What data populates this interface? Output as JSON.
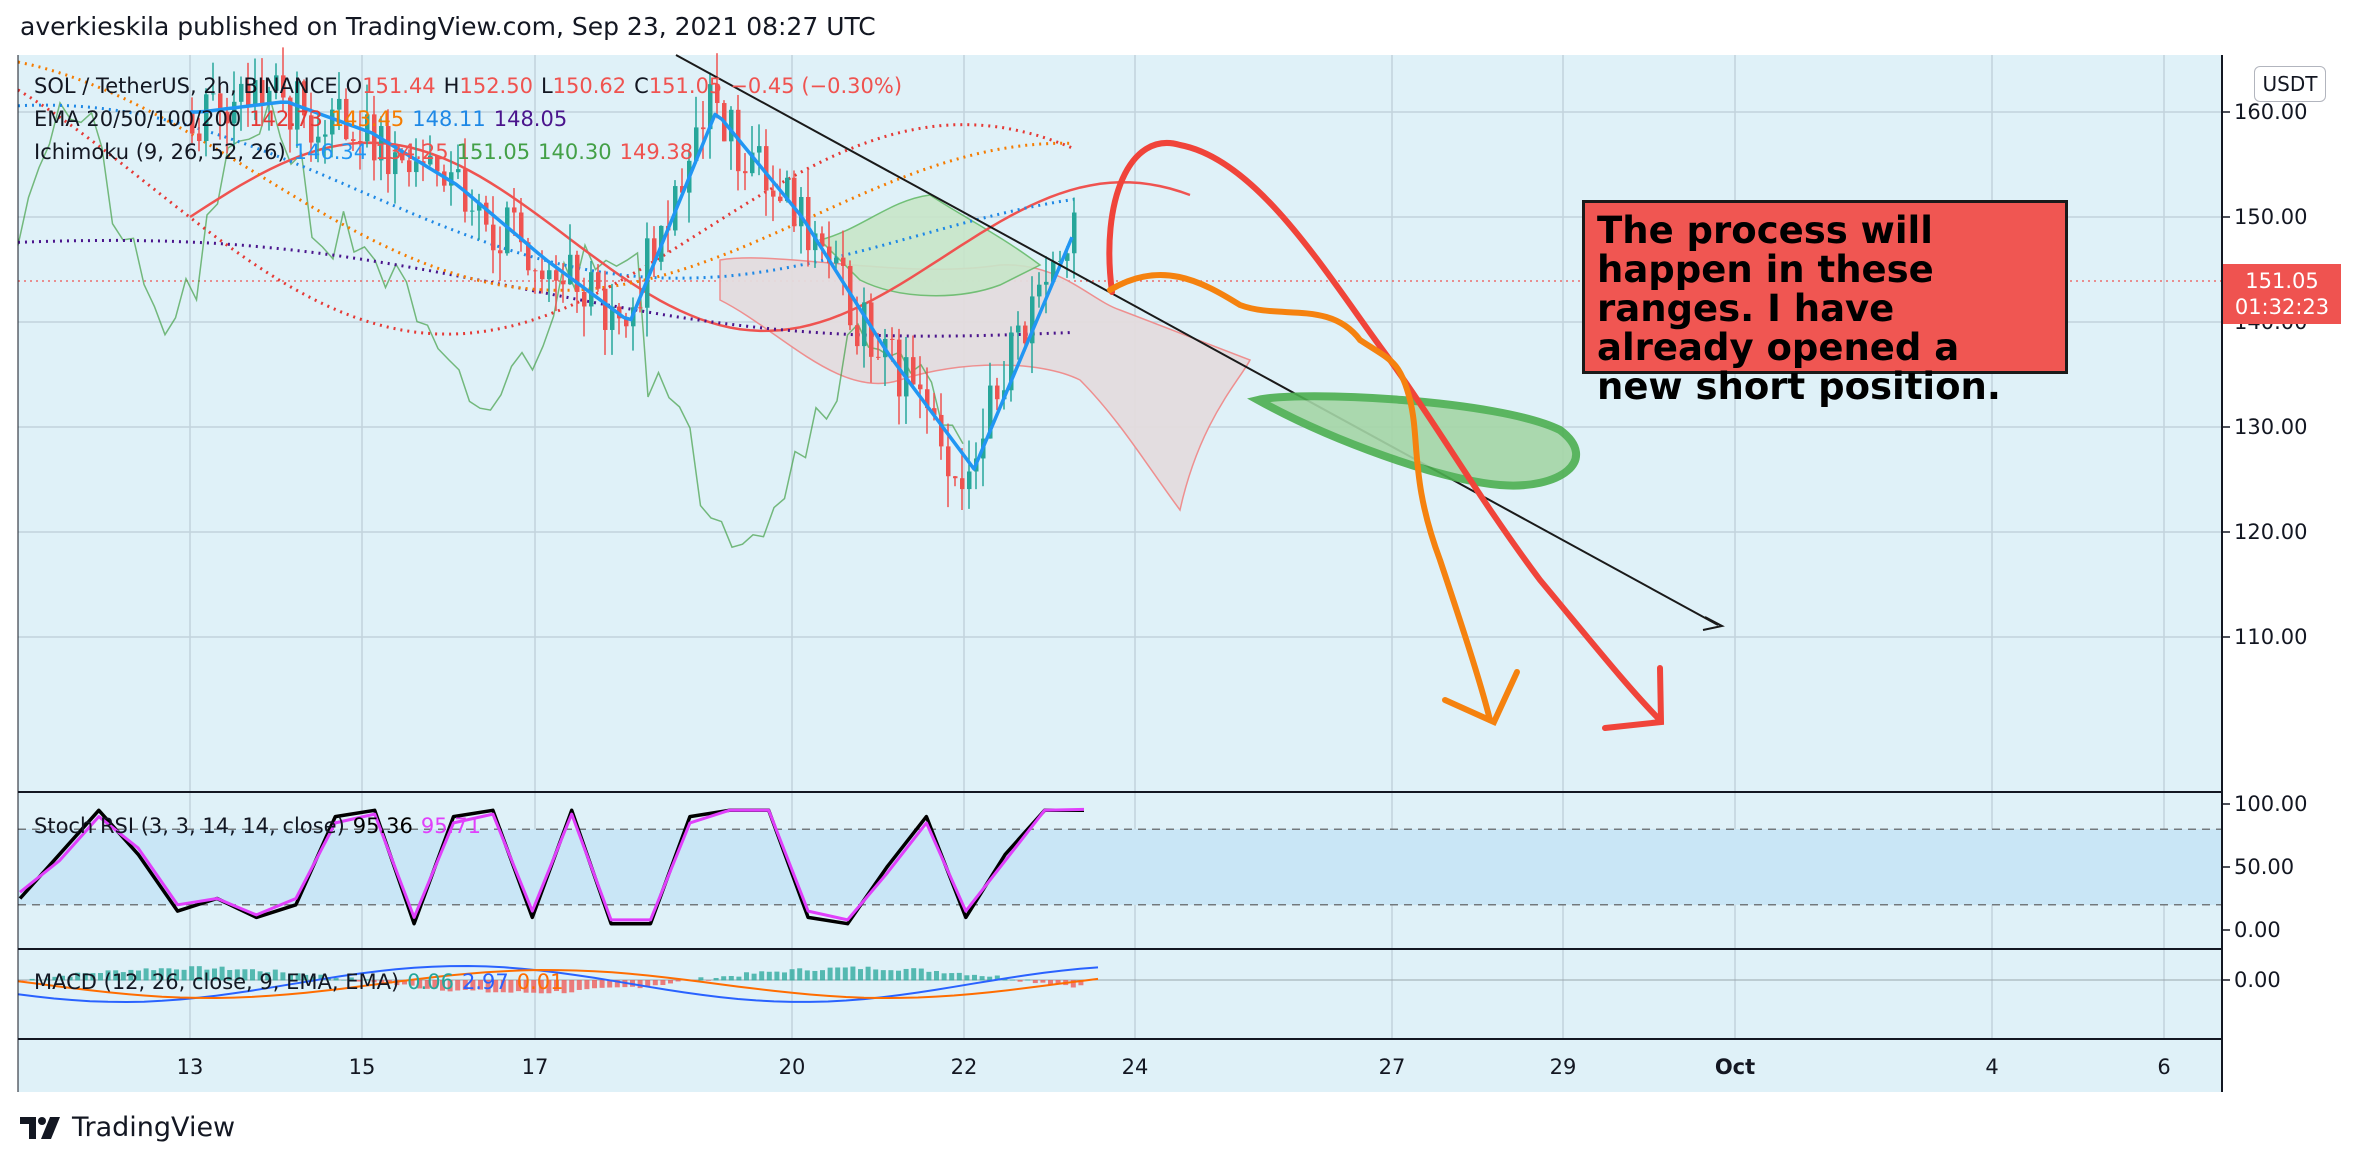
{
  "header": {
    "publisher_text": "averkieskila published on TradingView.com, Sep 23, 2021 08:27 UTC"
  },
  "legend": {
    "symbol": "SOL / TetherUS, 2h, BINANCE",
    "open_label": "O",
    "open": "151.44",
    "high_label": "H",
    "high": "152.50",
    "low_label": "L",
    "low": "150.62",
    "close_label": "C",
    "close": "151.05",
    "change": "−0.45 (−0.30%)",
    "ema_label": "EMA 20/50/100/200",
    "ema_values": [
      "142.73",
      "143.45",
      "148.11",
      "148.05"
    ],
    "ichimoku_label": "Ichimoku (9, 26, 52, 26)",
    "ichimoku_values": [
      "146.34",
      "134.25",
      "151.05",
      "140.30",
      "149.38"
    ],
    "stoch_label": "Stoch RSI (3, 3, 14, 14, close)",
    "stoch_values": [
      "95.36",
      "95.71"
    ],
    "macd_label": "MACD (12, 26, close, 9, EMA, EMA)",
    "macd_values": [
      "0.06",
      "2.97",
      "0.01"
    ]
  },
  "price_axis": {
    "currency": "USDT",
    "last_price": "151.05",
    "countdown": "01:32:23"
  },
  "annotation": {
    "text": "The process will happen in these ranges. I have already opened a new short position."
  },
  "colors": {
    "background": "#dff1f8",
    "up_candle": "#26a69a",
    "down_candle": "#ef5350",
    "ema20": "#e53935",
    "ema50": "#f57c00",
    "ema100": "#1e88e5",
    "ema200": "#4a148c",
    "conversion": "#2196f3",
    "base": "#ef5350",
    "lagging": "#43a047",
    "stoch_k": "#000000",
    "stoch_d": "#e040fb",
    "drawing_red": "#f0443a",
    "drawing_orange": "#f5820f",
    "drawing_green": "#4caf50"
  },
  "footer": {
    "brand": "TradingView"
  },
  "chart_data": [
    {
      "type": "candlestick",
      "title": "SOL / TetherUS, 2h, BINANCE",
      "x_ticks": [
        "13",
        "15",
        "17",
        "20",
        "22",
        "24",
        "27",
        "29",
        "Oct",
        "4",
        "6"
      ],
      "y_ticks": [
        "110.00",
        "120.00",
        "130.00",
        "140.00",
        "150.00",
        "160.00"
      ],
      "ylim": [
        100,
        170
      ],
      "grid": true,
      "last_price": 151.05,
      "ohlc_last": {
        "open": 151.44,
        "high": 152.5,
        "low": 150.62,
        "close": 151.05
      },
      "close_path": [
        {
          "x": "Sep 11",
          "close": 164
        },
        {
          "x": "Sep 12",
          "close": 160
        },
        {
          "x": "Sep 13",
          "close": 160
        },
        {
          "x": "Sep 14",
          "close": 161
        },
        {
          "x": "Sep 15",
          "close": 158
        },
        {
          "x": "Sep 16",
          "close": 153
        },
        {
          "x": "Sep 17",
          "close": 146
        },
        {
          "x": "Sep 18",
          "close": 140
        },
        {
          "x": "Sep 19",
          "close": 160
        },
        {
          "x": "Sep 20",
          "close": 150
        },
        {
          "x": "Sep 21",
          "close": 137
        },
        {
          "x": "Sep 22",
          "close": 126
        },
        {
          "x": "Sep 23",
          "close": 151
        }
      ],
      "ema_values_last": [
        142.73,
        143.45,
        148.11,
        148.05
      ],
      "ichimoku_values_last": [
        146.34,
        134.25,
        151.05,
        140.3,
        149.38
      ],
      "annotations": [
        "The process will happen in these ranges. I have already opened a new short position."
      ]
    },
    {
      "type": "line",
      "title": "Stoch RSI (3, 3, 14, 14, close)",
      "y_ticks": [
        "0.00",
        "50.00",
        "100.00"
      ],
      "ylim": [
        0,
        100
      ],
      "band": [
        20,
        80
      ],
      "series": [
        {
          "name": "K",
          "values": [
            25,
            60,
            95,
            60,
            15,
            25,
            10,
            20,
            90,
            95,
            5,
            90,
            95,
            10,
            95,
            5,
            5,
            90,
            95,
            95,
            10,
            5,
            50,
            90,
            10,
            60,
            95,
            95
          ]
        },
        {
          "name": "D",
          "values": [
            30,
            55,
            90,
            65,
            20,
            25,
            12,
            25,
            85,
            92,
            10,
            85,
            92,
            15,
            92,
            8,
            8,
            85,
            95,
            95,
            15,
            8,
            45,
            85,
            15,
            55,
            95,
            95.71
          ]
        }
      ],
      "last_values": [
        95.36,
        95.71
      ]
    },
    {
      "type": "bar",
      "title": "MACD (12, 26, close, 9, EMA, EMA)",
      "y_ticks": [
        "0.00"
      ],
      "last_values": [
        0.06,
        2.97,
        0.01
      ]
    }
  ]
}
